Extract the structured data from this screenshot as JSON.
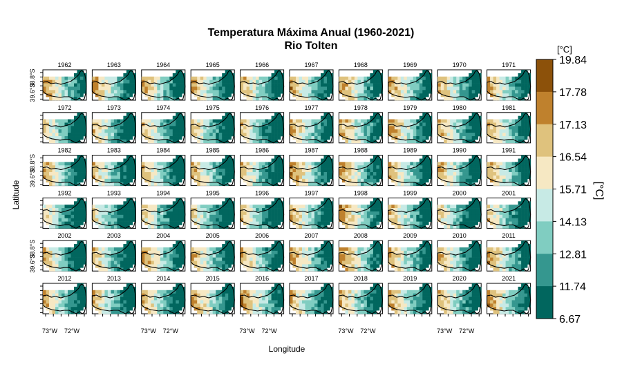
{
  "chart_data": {
    "type": "heatmap",
    "title": "Temperatura Máxima Anual (1960-2021)",
    "subtitle": "Rio Tolten",
    "xlabel": "Longitude",
    "ylabel": "Latitude",
    "colorbar_title": "[°C]",
    "colorbar_label": "[°C]",
    "x_tick_labels": [
      "73°W",
      "72°W"
    ],
    "y_tick_labels": [
      "39.6°S",
      "38.8°S"
    ],
    "colorbar_breaks": [
      "19.84",
      "17.78",
      "17.13",
      "16.54",
      "15.71",
      "14.13",
      "12.81",
      "11.74",
      "6.67"
    ],
    "colorbar_colors": [
      "#8c510a",
      "#bf812d",
      "#dfc27d",
      "#f6e8c3",
      "#c7eae5",
      "#80cdc1",
      "#35978f",
      "#01665e"
    ],
    "layout": {
      "rows": 6,
      "cols": 10
    },
    "panels": [
      {
        "year": "1962",
        "level": 0.58
      },
      {
        "year": "1963",
        "level": 0.52
      },
      {
        "year": "1964",
        "level": 0.5
      },
      {
        "year": "1965",
        "level": 0.48
      },
      {
        "year": "1966",
        "level": 0.46
      },
      {
        "year": "1967",
        "level": 0.52
      },
      {
        "year": "1968",
        "level": 0.58
      },
      {
        "year": "1969",
        "level": 0.55
      },
      {
        "year": "1970",
        "level": 0.5
      },
      {
        "year": "1971",
        "level": 0.52
      },
      {
        "year": "1972",
        "level": 0.3
      },
      {
        "year": "1973",
        "level": 0.36
      },
      {
        "year": "1974",
        "level": 0.4
      },
      {
        "year": "1975",
        "level": 0.34
      },
      {
        "year": "1976",
        "level": 0.3
      },
      {
        "year": "1977",
        "level": 0.52
      },
      {
        "year": "1978",
        "level": 0.56
      },
      {
        "year": "1979",
        "level": 0.55
      },
      {
        "year": "1980",
        "level": 0.45
      },
      {
        "year": "1981",
        "level": 0.5
      },
      {
        "year": "1982",
        "level": 0.5
      },
      {
        "year": "1983",
        "level": 0.4
      },
      {
        "year": "1984",
        "level": 0.42
      },
      {
        "year": "1985",
        "level": 0.48
      },
      {
        "year": "1986",
        "level": 0.36
      },
      {
        "year": "1987",
        "level": 0.6
      },
      {
        "year": "1988",
        "level": 0.58
      },
      {
        "year": "1989",
        "level": 0.5
      },
      {
        "year": "1990",
        "level": 0.44
      },
      {
        "year": "1991",
        "level": 0.54
      },
      {
        "year": "1992",
        "level": 0.22
      },
      {
        "year": "1993",
        "level": 0.26
      },
      {
        "year": "1994",
        "level": 0.32
      },
      {
        "year": "1995",
        "level": 0.24
      },
      {
        "year": "1996",
        "level": 0.3
      },
      {
        "year": "1997",
        "level": 0.48
      },
      {
        "year": "1998",
        "level": 0.62
      },
      {
        "year": "1999",
        "level": 0.44
      },
      {
        "year": "2000",
        "level": 0.28
      },
      {
        "year": "2001",
        "level": 0.32
      },
      {
        "year": "2002",
        "level": 0.4
      },
      {
        "year": "2003",
        "level": 0.36
      },
      {
        "year": "2004",
        "level": 0.56
      },
      {
        "year": "2005",
        "level": 0.5
      },
      {
        "year": "2006",
        "level": 0.48
      },
      {
        "year": "2007",
        "level": 0.58
      },
      {
        "year": "2008",
        "level": 0.66
      },
      {
        "year": "2009",
        "level": 0.5
      },
      {
        "year": "2010",
        "level": 0.44
      },
      {
        "year": "2011",
        "level": 0.54
      },
      {
        "year": "2012",
        "level": 0.44
      },
      {
        "year": "2013",
        "level": 0.4
      },
      {
        "year": "2014",
        "level": 0.46
      },
      {
        "year": "2015",
        "level": 0.56
      },
      {
        "year": "2016",
        "level": 0.64
      },
      {
        "year": "2017",
        "level": 0.44
      },
      {
        "year": "2018",
        "level": 0.46
      },
      {
        "year": "2019",
        "level": 0.5
      },
      {
        "year": "2020",
        "level": 0.44
      },
      {
        "year": "2021",
        "level": 0.58
      }
    ]
  }
}
